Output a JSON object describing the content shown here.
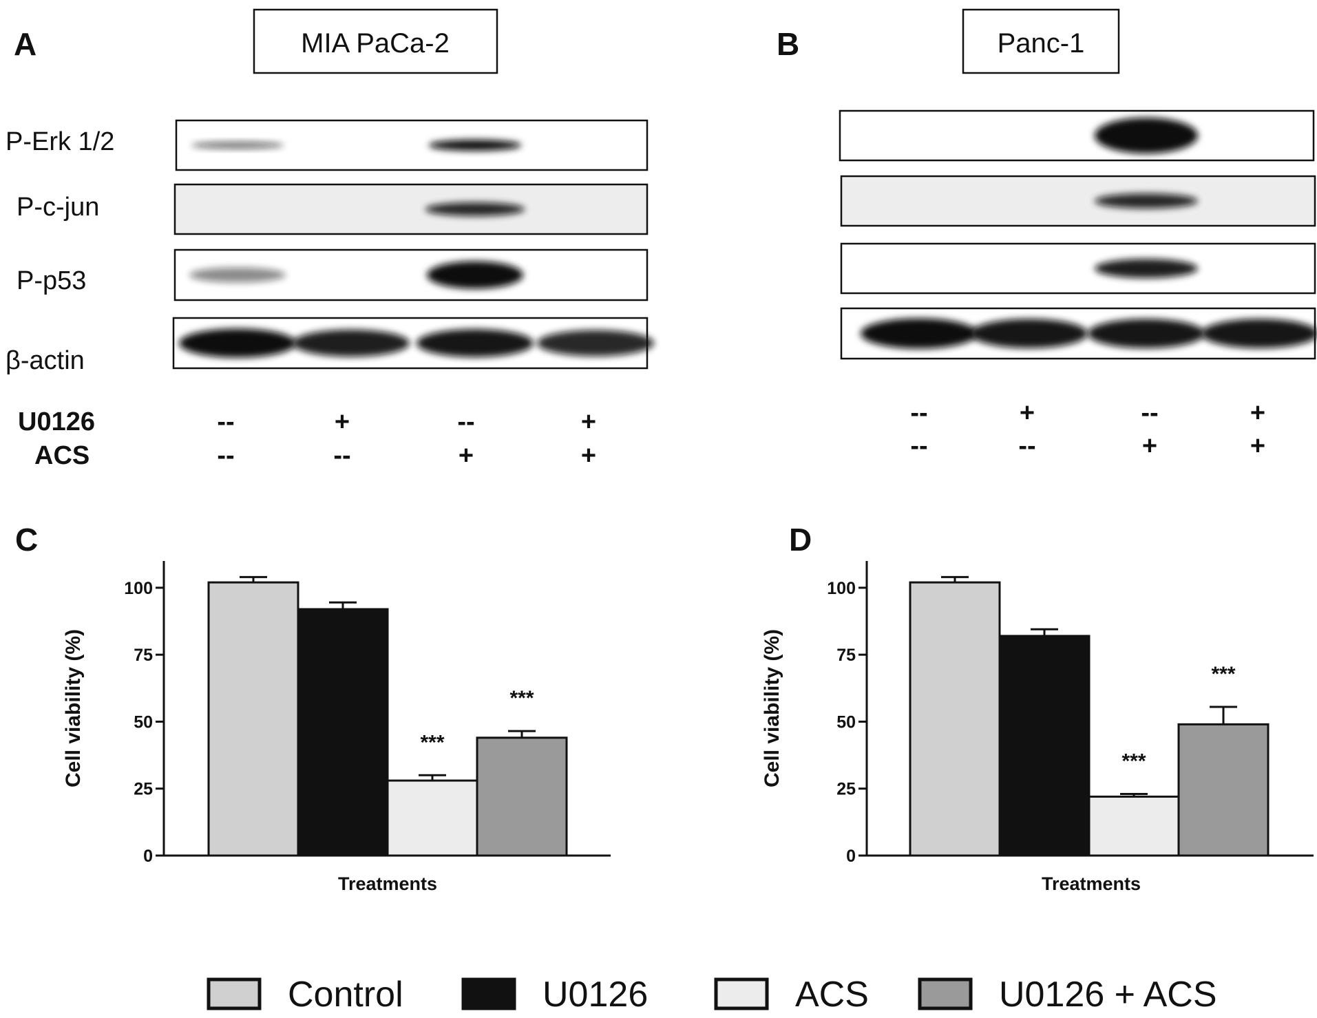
{
  "panel_a": {
    "letter": "A",
    "cell_line": "MIA PaCa-2",
    "row_labels": [
      "P-Erk 1/2",
      "P-c-jun",
      "P-p53",
      "β-actin"
    ],
    "treatment_labels": [
      "U0126",
      "ACS"
    ],
    "u0126_marks": [
      "--",
      "+",
      "--",
      "+"
    ],
    "acs_marks": [
      "--",
      "--",
      "+",
      "+"
    ],
    "bands": [
      [
        0.45,
        0.0,
        1.0,
        0.0
      ],
      [
        0.0,
        0.0,
        0.85,
        0.0
      ],
      [
        0.3,
        0.0,
        1.0,
        0.0
      ],
      [
        1.0,
        0.9,
        0.95,
        0.85
      ]
    ]
  },
  "panel_b": {
    "letter": "B",
    "cell_line": "Panc-1",
    "u0126_marks": [
      "--",
      "+",
      "--",
      "+"
    ],
    "acs_marks": [
      "--",
      "--",
      "+",
      "+"
    ],
    "bands": [
      [
        0.0,
        0.0,
        1.0,
        0.0
      ],
      [
        0.0,
        0.0,
        0.85,
        0.0
      ],
      [
        0.0,
        0.0,
        0.9,
        0.0
      ],
      [
        1.0,
        0.95,
        0.95,
        0.95
      ]
    ]
  },
  "chart_data": [
    {
      "panel": "C",
      "type": "bar",
      "categories": [
        "Control",
        "U0126",
        "ACS",
        "U0126 + ACS"
      ],
      "values": [
        102,
        92,
        28,
        44
      ],
      "errors": [
        2,
        2.5,
        2,
        2.5
      ],
      "significance": [
        "",
        "",
        "***",
        "***"
      ],
      "xlabel": "Treatments",
      "ylabel": "Cell viability (%)",
      "ylim": [
        0,
        110
      ],
      "yticks": [
        0,
        25,
        50,
        75,
        100
      ]
    },
    {
      "panel": "D",
      "type": "bar",
      "categories": [
        "Control",
        "U0126",
        "ACS",
        "U0126 + ACS"
      ],
      "values": [
        102,
        82,
        22,
        49
      ],
      "errors": [
        2,
        2.5,
        1,
        6.5
      ],
      "significance": [
        "",
        "",
        "***",
        "***"
      ],
      "xlabel": "Treatments",
      "ylabel": "Cell viability (%)",
      "ylim": [
        0,
        110
      ],
      "yticks": [
        0,
        25,
        50,
        75,
        100
      ]
    }
  ],
  "legend": {
    "items": [
      "Control",
      "U0126",
      "ACS",
      "U0126 + ACS"
    ],
    "colors": [
      "#d0d0d0",
      "#111111",
      "#ececec",
      "#9a9a9a"
    ]
  }
}
